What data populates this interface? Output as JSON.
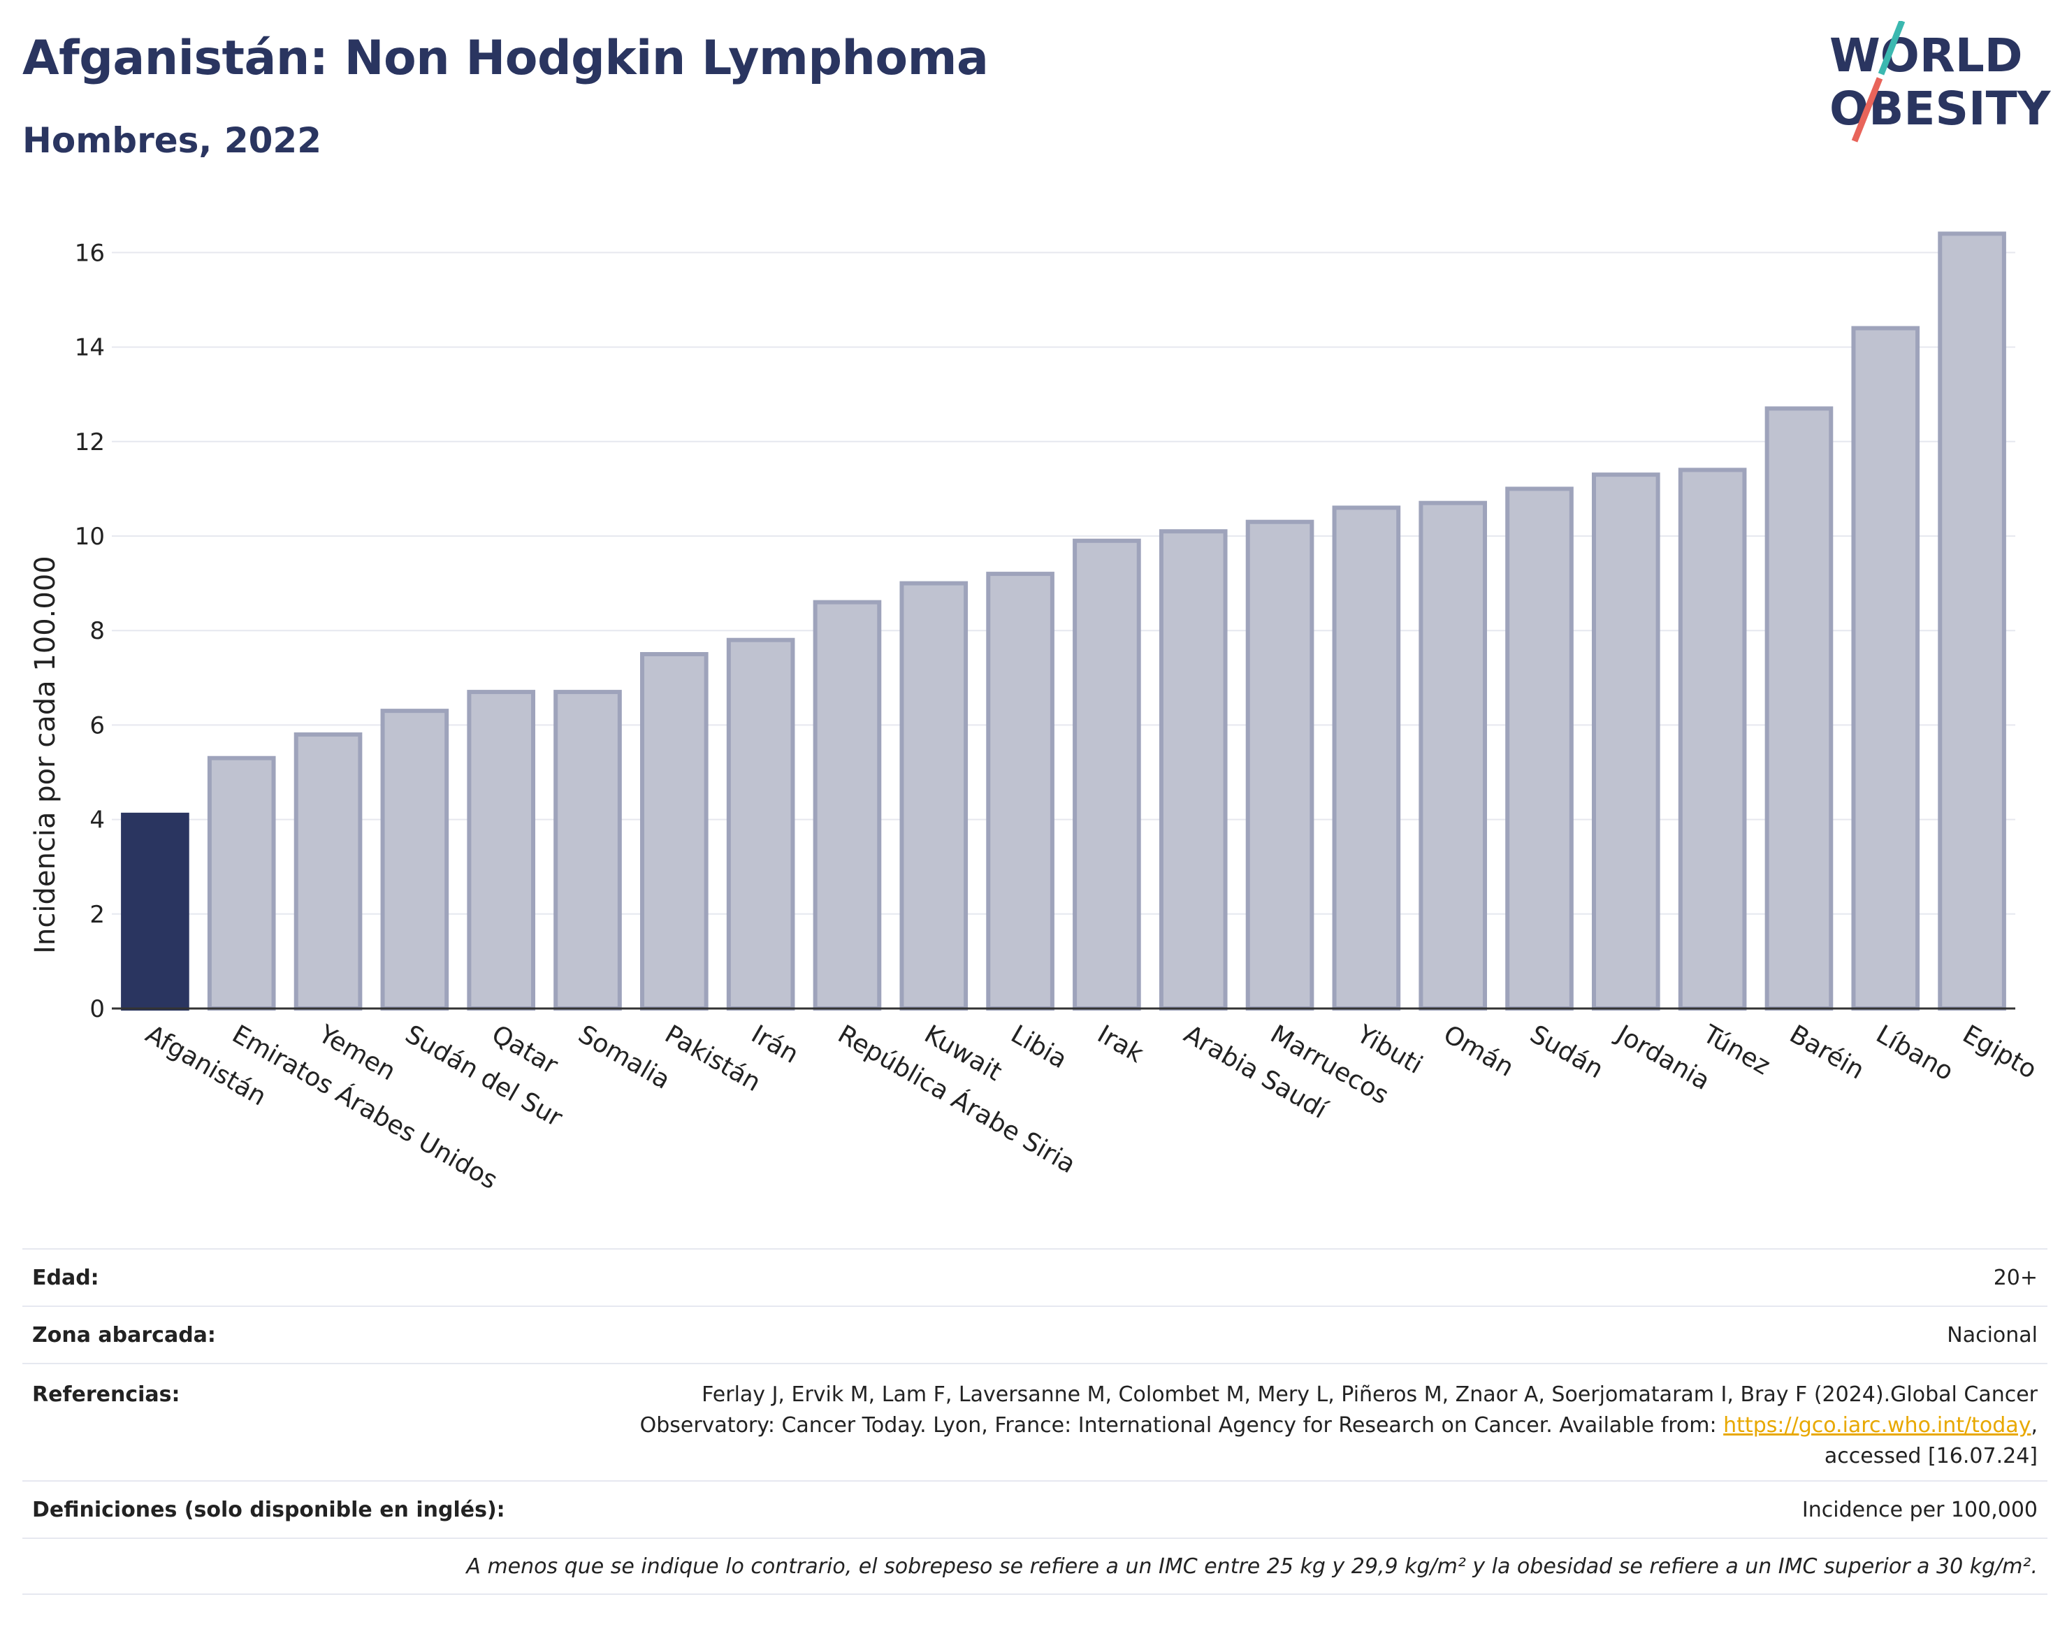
{
  "header": {
    "title": "Afganistán: Non Hodgkin Lymphoma",
    "subtitle": "Hombres, 2022"
  },
  "logo": {
    "line1": "WORLD",
    "line2": "OBESITY",
    "colors": {
      "text": "#2a3560",
      "slash_top": "#3bb8b0",
      "slash_bottom": "#e8645a"
    }
  },
  "colors": {
    "highlight_bar": "#2a3560",
    "other_bar_fill": "#bfc2d0",
    "other_bar_stroke": "#9ea3bb",
    "grid": "#e6e8ef"
  },
  "chart_data": {
    "type": "bar",
    "title": "Afganistán: Non Hodgkin Lymphoma",
    "subtitle": "Hombres, 2022",
    "xlabel": "",
    "ylabel": "Incidencia por cada 100.000",
    "ylim": [
      0,
      17
    ],
    "yticks": [
      0,
      2,
      4,
      6,
      8,
      10,
      12,
      14,
      16
    ],
    "grid": true,
    "highlight": "Afganistán",
    "categories": [
      "Afganistán",
      "Emiratos Árabes Unidos",
      "Yemen",
      "Sudán del Sur",
      "Qatar",
      "Somalia",
      "Pakistán",
      "Irán",
      "República Árabe Siria",
      "Kuwait",
      "Libia",
      "Irak",
      "Arabia Saudí",
      "Marruecos",
      "Yibuti",
      "Omán",
      "Sudán",
      "Jordania",
      "Túnez",
      "Baréin",
      "Líbano",
      "Egipto"
    ],
    "values": [
      4.1,
      5.3,
      5.8,
      6.3,
      6.7,
      6.7,
      7.5,
      7.8,
      8.6,
      9.0,
      9.2,
      9.9,
      10.1,
      10.3,
      10.6,
      10.7,
      11.0,
      11.3,
      11.4,
      12.7,
      14.4,
      16.4
    ]
  },
  "info": {
    "age_label": "Edad:",
    "age_value": "20+",
    "area_label": "Zona abarcada:",
    "area_value": "Nacional",
    "ref_label": "Referencias:",
    "ref_line1": "Ferlay J, Ervik M, Lam F, Laversanne M, Colombet M, Mery L, Piñeros M, Znaor A, Soerjomataram I, Bray F (2024).Global Cancer",
    "ref_line2_pre": "Observatory: Cancer Today. Lyon, France: International Agency for Research on Cancer. Available from: ",
    "ref_link": "https://gco.iarc.who.int/today",
    "ref_line2_post": ",",
    "ref_line3": "accessed [16.07.24]",
    "def_label": "Definiciones (solo disponible en inglés):",
    "def_value": "Incidence per 100,000",
    "note": "A menos que se indique lo contrario, el sobrepeso se refiere a un IMC entre 25 kg y 29,9 kg/m² y la obesidad se refiere a un IMC superior a 30 kg/m²."
  }
}
